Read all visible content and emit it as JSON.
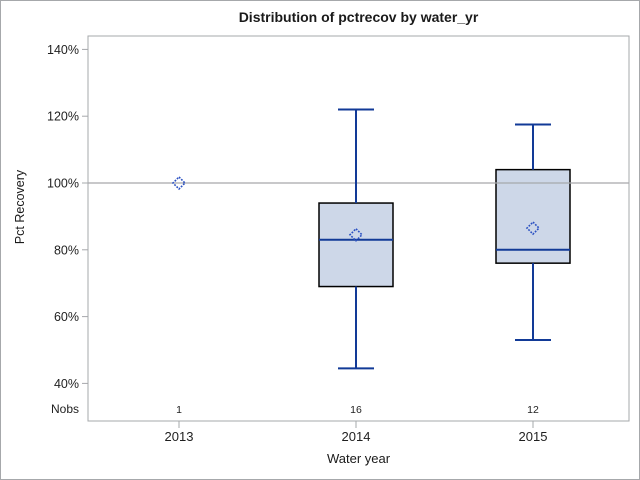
{
  "window": {
    "background": "#ffffff",
    "border_color": "#a6a8ab"
  },
  "chart_data": {
    "type": "boxplot",
    "title": "Distribution of pctrecov by water_yr",
    "xlabel": "Water year",
    "ylabel": "Pct Recovery",
    "nobs_label": "Nobs",
    "categories": [
      "2013",
      "2014",
      "2015"
    ],
    "y_ticks": [
      40,
      60,
      80,
      100,
      120,
      140
    ],
    "y_tick_labels": [
      "40%",
      "60%",
      "80%",
      "100%",
      "120%",
      "140%"
    ],
    "ref_line": 100,
    "legend": "none",
    "grid": "off",
    "groups": [
      {
        "year": "2013",
        "nobs": "1",
        "kind": "point",
        "mean": 100
      },
      {
        "year": "2014",
        "nobs": "16",
        "kind": "box",
        "low": 44.5,
        "q1": 69,
        "median": 83,
        "mean": 84.5,
        "q3": 94,
        "high": 122
      },
      {
        "year": "2015",
        "nobs": "12",
        "kind": "box",
        "low": 53,
        "q1": 76,
        "median": 80,
        "mean": 86.5,
        "q3": 104,
        "high": 117.5
      }
    ],
    "colors": {
      "box_fill": "#cdd7e8",
      "box_border": "#000000",
      "line": "#123a97",
      "marker": "#2a50c2",
      "ref_line": "#a6a8ab",
      "frame": "#a6a8ab",
      "text": "#1f1f1f"
    }
  }
}
